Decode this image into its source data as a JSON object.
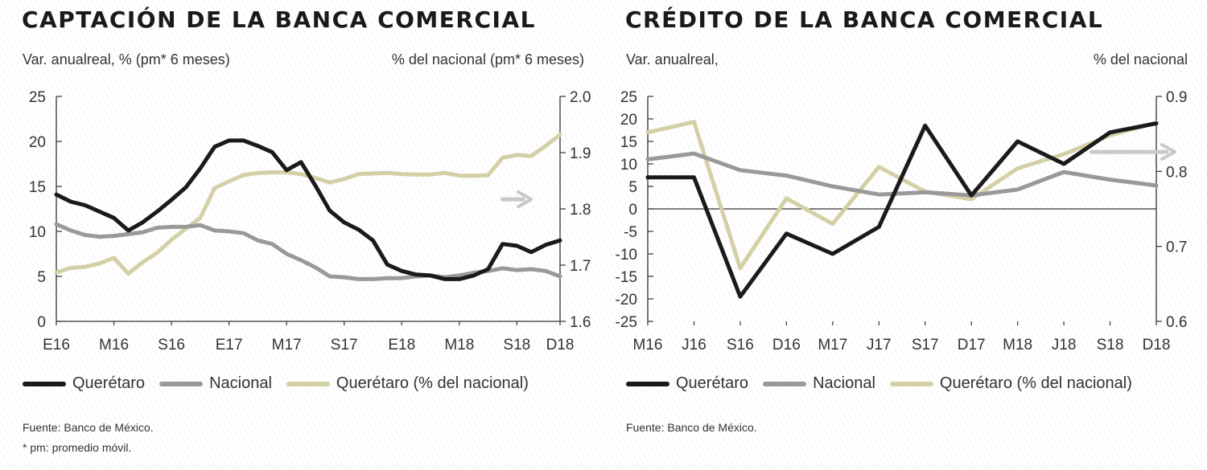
{
  "charts": [
    {
      "title": "CAPTACIÓN DE LA BANCA COMERCIAL",
      "left_axis_label": "Var. anualreal, % (pm* 6 meses)",
      "right_axis_label": "% del nacional (pm* 6 meses)",
      "footnotes": [
        "Fuente: Banco de México.",
        "* pm: promedio móvil."
      ]
    },
    {
      "title": "CRÉDITO DE LA BANCA COMERCIAL",
      "left_axis_label": "Var. anualreal,",
      "right_axis_label": "% del nacional",
      "footnotes": [
        "Fuente: Banco de México."
      ]
    }
  ],
  "colors": {
    "queretaro": "#1a1a1a",
    "nacional": "#999999",
    "queretaro_pct": "#d4d0a6",
    "arrow": "#c8c8c8",
    "axis": "#333333"
  },
  "chart_data": [
    {
      "type": "line",
      "title": "CAPTACIÓN DE LA BANCA COMERCIAL",
      "x_tick_labels": [
        "E16",
        "M16",
        "S16",
        "E17",
        "M17",
        "S17",
        "E18",
        "M18",
        "S18",
        "D18"
      ],
      "left_ylim": [
        0,
        25
      ],
      "left_yticks": [
        "0",
        "5",
        "10",
        "15",
        "20",
        "25"
      ],
      "right_ylim": [
        1.6,
        2.0
      ],
      "right_yticks": [
        "1.6",
        "1.7",
        "1.8",
        "1.9",
        "2.0"
      ],
      "series": [
        {
          "name": "Querétaro",
          "axis": "left",
          "color_key": "queretaro",
          "x": [
            0,
            1,
            2,
            3,
            4,
            5,
            6,
            7,
            8,
            9,
            10,
            11,
            12,
            13,
            14,
            15,
            16,
            17,
            18,
            19,
            20,
            21,
            22,
            23,
            24,
            25,
            26,
            27,
            28,
            29,
            30,
            31,
            32,
            33,
            34,
            35
          ],
          "values": [
            14.1,
            13.3,
            12.9,
            12.2,
            11.5,
            10.1,
            11.0,
            12.2,
            13.5,
            14.9,
            17.0,
            19.4,
            20.1,
            20.1,
            19.5,
            18.8,
            16.8,
            17.7,
            15.1,
            12.3,
            11.0,
            10.2,
            9.0,
            6.3,
            5.6,
            5.2,
            5.1,
            4.7,
            4.7,
            5.1,
            5.8,
            8.6,
            8.4,
            7.7,
            8.5,
            9.0
          ]
        },
        {
          "name": "Nacional",
          "axis": "left",
          "color_key": "nacional",
          "x": [
            0,
            1,
            2,
            3,
            4,
            5,
            6,
            7,
            8,
            9,
            10,
            11,
            12,
            13,
            14,
            15,
            16,
            17,
            18,
            19,
            20,
            21,
            22,
            23,
            24,
            25,
            26,
            27,
            28,
            29,
            30,
            31,
            32,
            33,
            34,
            35
          ],
          "values": [
            10.8,
            10.1,
            9.6,
            9.4,
            9.5,
            9.7,
            9.9,
            10.4,
            10.5,
            10.5,
            10.7,
            10.1,
            10.0,
            9.8,
            9.0,
            8.6,
            7.5,
            6.8,
            6.0,
            5.0,
            4.9,
            4.7,
            4.7,
            4.8,
            4.8,
            5.0,
            5.1,
            4.9,
            5.1,
            5.4,
            5.6,
            5.9,
            5.7,
            5.8,
            5.6,
            5.0
          ]
        },
        {
          "name": "Querétaro (% del nacional)",
          "axis": "right",
          "color_key": "queretaro_pct",
          "x": [
            0,
            1,
            2,
            3,
            4,
            5,
            6,
            7,
            8,
            9,
            10,
            11,
            12,
            13,
            14,
            15,
            16,
            17,
            18,
            19,
            20,
            21,
            22,
            23,
            24,
            25,
            26,
            27,
            28,
            29,
            30,
            31,
            32,
            33,
            34,
            35
          ],
          "values": [
            1.687,
            1.695,
            1.697,
            1.703,
            1.713,
            1.685,
            1.705,
            1.722,
            1.745,
            1.765,
            1.784,
            1.837,
            1.849,
            1.86,
            1.864,
            1.865,
            1.865,
            1.862,
            1.855,
            1.847,
            1.853,
            1.862,
            1.863,
            1.864,
            1.862,
            1.861,
            1.861,
            1.864,
            1.859,
            1.859,
            1.86,
            1.891,
            1.896,
            1.894,
            1.912,
            1.932
          ]
        }
      ],
      "annotations": [
        {
          "type": "arrow",
          "direction": "right",
          "refers_to": "Querétaro (% del nacional)",
          "axis": "right"
        }
      ]
    },
    {
      "type": "line",
      "title": "CRÉDITO DE LA BANCA COMERCIAL",
      "x_tick_labels": [
        "M16",
        "J16",
        "S16",
        "D16",
        "M17",
        "J17",
        "S17",
        "D17",
        "M18",
        "J18",
        "S18",
        "D18"
      ],
      "left_ylim": [
        -25,
        25
      ],
      "left_yticks": [
        "-25",
        "-20",
        "-15",
        "-10",
        "-5",
        "0",
        "5",
        "10",
        "15",
        "20",
        "25"
      ],
      "right_ylim": [
        0.6,
        0.9
      ],
      "right_yticks": [
        "0.6",
        "0.7",
        "0.8",
        "0.9"
      ],
      "series": [
        {
          "name": "Querétaro",
          "axis": "left",
          "color_key": "queretaro",
          "x": [
            0,
            1,
            2,
            3,
            4,
            5,
            6,
            7,
            8,
            9,
            10,
            11
          ],
          "values": [
            7,
            7,
            -19.5,
            -5.5,
            -10,
            -4,
            18.5,
            3,
            15,
            10,
            17,
            19
          ]
        },
        {
          "name": "Nacional",
          "axis": "left",
          "color_key": "nacional",
          "x": [
            0,
            1,
            2,
            3,
            4,
            5,
            6,
            7,
            8,
            9,
            10,
            11
          ],
          "values": [
            11,
            12.3,
            8.6,
            7.4,
            5,
            3.2,
            3.7,
            3,
            4.3,
            8.2,
            6.5,
            5.2
          ]
        },
        {
          "name": "Querétaro (% del nacional)",
          "axis": "right",
          "color_key": "queretaro_pct",
          "x": [
            0,
            1,
            2,
            3,
            4,
            5,
            6,
            7,
            8,
            9,
            10,
            11
          ],
          "values": [
            0.852,
            0.866,
            0.671,
            0.764,
            0.73,
            0.806,
            0.773,
            0.763,
            0.804,
            0.823,
            0.848,
            0.865
          ]
        }
      ],
      "annotations": [
        {
          "type": "arrow",
          "direction": "right",
          "refers_to": "Querétaro (% del nacional)",
          "axis": "right"
        }
      ]
    }
  ],
  "legend": [
    {
      "label": "Querétaro",
      "color_key": "queretaro"
    },
    {
      "label": "Nacional",
      "color_key": "nacional"
    },
    {
      "label": "Querétaro (% del nacional)",
      "color_key": "queretaro_pct"
    }
  ]
}
